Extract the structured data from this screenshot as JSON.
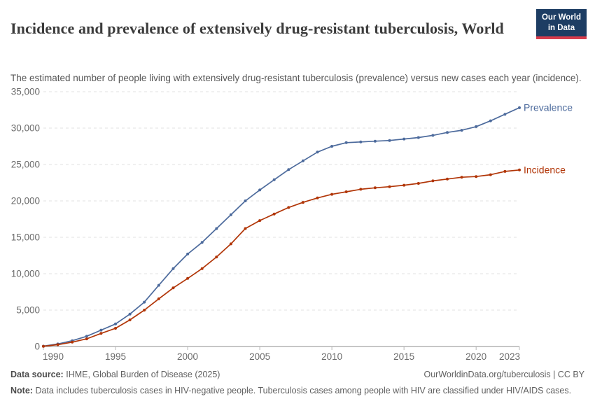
{
  "header": {
    "title": "Incidence and prevalence of extensively drug-resistant tuberculosis, World",
    "subtitle": "The estimated number of people living with extensively drug-resistant tuberculosis (prevalence) versus new cases each year (incidence).",
    "logo": {
      "line1": "Our World",
      "line2": "in Data",
      "bg_color": "#1d3d63",
      "accent_color": "#d73c4c"
    }
  },
  "chart_data": {
    "type": "line",
    "title": "Incidence and prevalence of extensively drug-resistant tuberculosis, World",
    "xlabel": "",
    "ylabel": "",
    "xlim": [
      1990,
      2023
    ],
    "ylim": [
      0,
      35000
    ],
    "grid": "horizontal dashed",
    "legend_position": "end-of-line labels",
    "xticks": [
      1990,
      1995,
      2000,
      2005,
      2010,
      2015,
      2020,
      2023
    ],
    "yticks": [
      0,
      5000,
      10000,
      15000,
      20000,
      25000,
      30000,
      35000
    ],
    "x": [
      1990,
      1991,
      1992,
      1993,
      1994,
      1995,
      1996,
      1997,
      1998,
      1999,
      2000,
      2001,
      2002,
      2003,
      2004,
      2005,
      2006,
      2007,
      2008,
      2009,
      2010,
      2011,
      2012,
      2013,
      2014,
      2015,
      2016,
      2017,
      2018,
      2019,
      2020,
      2021,
      2022,
      2023
    ],
    "series": [
      {
        "name": "Prevalence",
        "color": "#4C6A9C",
        "values": [
          50,
          350,
          800,
          1400,
          2250,
          3100,
          4450,
          6100,
          8400,
          10700,
          12700,
          14300,
          16200,
          18100,
          20000,
          21500,
          22900,
          24300,
          25500,
          26700,
          27500,
          28000,
          28100,
          28200,
          28300,
          28500,
          28700,
          29000,
          29400,
          29700,
          30200,
          31000,
          31900,
          32800
        ]
      },
      {
        "name": "Incidence",
        "color": "#B13507",
        "values": [
          30,
          250,
          600,
          1050,
          1800,
          2500,
          3650,
          5000,
          6550,
          8050,
          9350,
          10700,
          12300,
          14100,
          16200,
          17300,
          18200,
          19100,
          19800,
          20400,
          20900,
          21250,
          21600,
          21800,
          21950,
          22150,
          22400,
          22750,
          23000,
          23250,
          23350,
          23600,
          24050,
          24250
        ]
      }
    ],
    "colors": {
      "gridline": "#e2e2e2",
      "axis": "#8e8e8e",
      "tick": "#b8b8b8",
      "tick_label": "#6b6b6b"
    }
  },
  "footer": {
    "data_source_label": "Data source:",
    "data_source_value": "IHME, Global Burden of Disease (2025)",
    "link_text": "OurWorldinData.org/tuberculosis | CC BY",
    "note_label": "Note:",
    "note_value": "Data includes tuberculosis cases in HIV-negative people. Tuberculosis cases among people with HIV are classified under HIV/AIDS cases."
  }
}
